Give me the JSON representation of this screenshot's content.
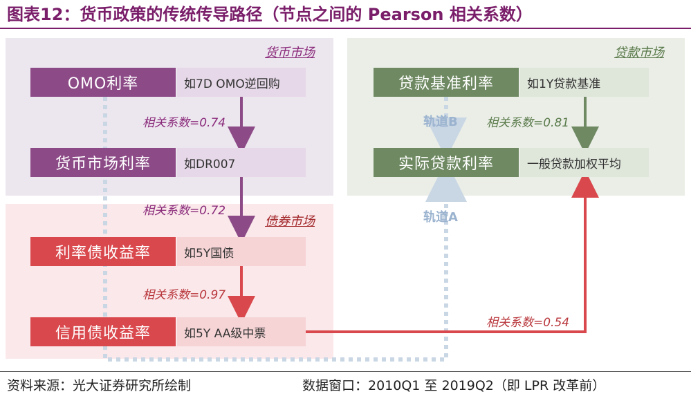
{
  "title": "图表12：货币政策的传统传导路径（节点之间的 Pearson 相关系数）",
  "markets": {
    "money": "货币市场",
    "bond": "债券市场",
    "loan": "贷款市场"
  },
  "nodes": {
    "omo": {
      "label": "OMO利率",
      "example": "如7D OMO逆回购"
    },
    "market_rate": {
      "label": "货币市场利率",
      "example": "如DR007"
    },
    "bond_yield": {
      "label": "利率债收益率",
      "example": "如5Y国债"
    },
    "credit_yield": {
      "label": "信用债收益率",
      "example": "如5Y AA级中票"
    },
    "loan_base": {
      "label": "贷款基准利率",
      "example": "如1Y贷款基准"
    },
    "loan_real": {
      "label": "实际贷款利率",
      "example": "一般贷款加权平均"
    }
  },
  "correlations": {
    "omo_to_market": "相关系数=0.74",
    "market_to_bond": "相关系数=0.72",
    "bond_to_credit": "相关系数=0.97",
    "base_to_real": "相关系数=0.81",
    "credit_to_real": "相关系数=0.54"
  },
  "tracks": {
    "a": "轨道A",
    "b": "轨道B"
  },
  "colors": {
    "title": "#7a1e6a",
    "purple_node": "#8c4a87",
    "red_node": "#d9484c",
    "green_node": "#6f8a63",
    "track_dotted": "#c9d6e4"
  },
  "footer": {
    "source": "资料来源：光大证券研究所绘制",
    "window": "数据窗口：2010Q1 至 2019Q2（即 LPR 改革前）"
  }
}
